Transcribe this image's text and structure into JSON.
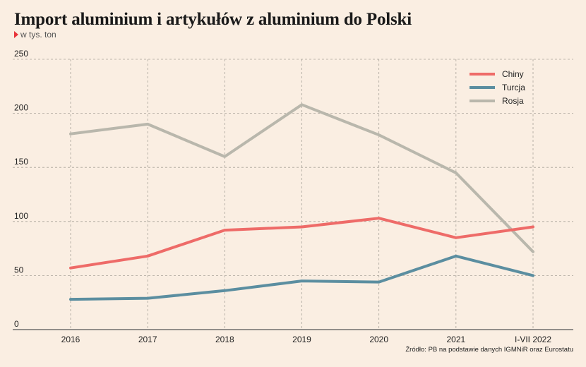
{
  "chart_data": {
    "type": "line",
    "title": "Import aluminium i artykułów z aluminium do Polski",
    "subtitle": "w tys. ton",
    "source": "Źródło: PB na podstawie danych IGMNiR oraz Eurostatu",
    "categories": [
      "2016",
      "2017",
      "2018",
      "2019",
      "2020",
      "2021",
      "I-VII 2022"
    ],
    "y_ticks": [
      0,
      50,
      100,
      150,
      200,
      250
    ],
    "ylim": [
      0,
      250
    ],
    "grid": true,
    "legend_position": "top-right",
    "series": [
      {
        "name": "Chiny",
        "color": "#ee6b68",
        "values": [
          57,
          68,
          92,
          95,
          103,
          85,
          95
        ]
      },
      {
        "name": "Turcja",
        "color": "#5b8ea0",
        "values": [
          28,
          29,
          36,
          45,
          44,
          68,
          50
        ]
      },
      {
        "name": "Rosja",
        "color": "#b9b7ac",
        "values": [
          181,
          190,
          160,
          208,
          180,
          145,
          72
        ]
      }
    ]
  }
}
